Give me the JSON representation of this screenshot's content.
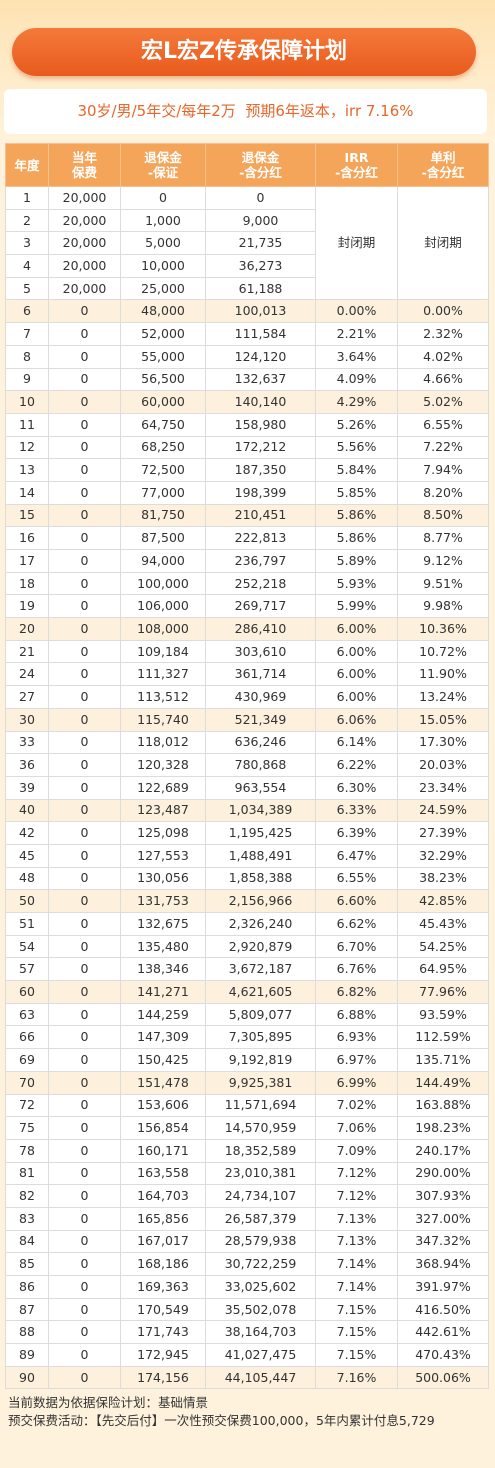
{
  "header": {
    "title": "宏L宏Z传承保障计划",
    "subtitle": "30岁/男/5年交/每年2万  预期6年返本，irr 7.16%"
  },
  "table": {
    "columns": [
      "年度",
      "当年\n保费",
      "退保金\n-保证",
      "退保金\n-含分红",
      "IRR\n-含分红",
      "单利\n-含分红"
    ],
    "closed_label": "封闭期",
    "rows": [
      {
        "cells": [
          "1",
          "20,000",
          "0",
          "0"
        ]
      },
      {
        "cells": [
          "2",
          "20,000",
          "1,000",
          "9,000"
        ]
      },
      {
        "cells": [
          "3",
          "20,000",
          "5,000",
          "21,735"
        ]
      },
      {
        "cells": [
          "4",
          "20,000",
          "10,000",
          "36,273"
        ]
      },
      {
        "cells": [
          "5",
          "20,000",
          "25,000",
          "61,188"
        ]
      },
      {
        "cells": [
          "6",
          "0",
          "48,000",
          "100,013",
          "0.00%",
          "0.00%"
        ],
        "highlight": true
      },
      {
        "cells": [
          "7",
          "0",
          "52,000",
          "111,584",
          "2.21%",
          "2.32%"
        ]
      },
      {
        "cells": [
          "8",
          "0",
          "55,000",
          "124,120",
          "3.64%",
          "4.02%"
        ]
      },
      {
        "cells": [
          "9",
          "0",
          "56,500",
          "132,637",
          "4.09%",
          "4.66%"
        ]
      },
      {
        "cells": [
          "10",
          "0",
          "60,000",
          "140,140",
          "4.29%",
          "5.02%"
        ],
        "highlight": true
      },
      {
        "cells": [
          "11",
          "0",
          "64,750",
          "158,980",
          "5.26%",
          "6.55%"
        ]
      },
      {
        "cells": [
          "12",
          "0",
          "68,250",
          "172,212",
          "5.56%",
          "7.22%"
        ]
      },
      {
        "cells": [
          "13",
          "0",
          "72,500",
          "187,350",
          "5.84%",
          "7.94%"
        ]
      },
      {
        "cells": [
          "14",
          "0",
          "77,000",
          "198,399",
          "5.85%",
          "8.20%"
        ]
      },
      {
        "cells": [
          "15",
          "0",
          "81,750",
          "210,451",
          "5.86%",
          "8.50%"
        ],
        "highlight": true
      },
      {
        "cells": [
          "16",
          "0",
          "87,500",
          "222,813",
          "5.86%",
          "8.77%"
        ]
      },
      {
        "cells": [
          "17",
          "0",
          "94,000",
          "236,797",
          "5.89%",
          "9.12%"
        ]
      },
      {
        "cells": [
          "18",
          "0",
          "100,000",
          "252,218",
          "5.93%",
          "9.51%"
        ]
      },
      {
        "cells": [
          "19",
          "0",
          "106,000",
          "269,717",
          "5.99%",
          "9.98%"
        ]
      },
      {
        "cells": [
          "20",
          "0",
          "108,000",
          "286,410",
          "6.00%",
          "10.36%"
        ],
        "highlight": true
      },
      {
        "cells": [
          "21",
          "0",
          "109,184",
          "303,610",
          "6.00%",
          "10.72%"
        ]
      },
      {
        "cells": [
          "24",
          "0",
          "111,327",
          "361,714",
          "6.00%",
          "11.90%"
        ]
      },
      {
        "cells": [
          "27",
          "0",
          "113,512",
          "430,969",
          "6.00%",
          "13.24%"
        ]
      },
      {
        "cells": [
          "30",
          "0",
          "115,740",
          "521,349",
          "6.06%",
          "15.05%"
        ],
        "highlight": true
      },
      {
        "cells": [
          "33",
          "0",
          "118,012",
          "636,246",
          "6.14%",
          "17.30%"
        ]
      },
      {
        "cells": [
          "36",
          "0",
          "120,328",
          "780,868",
          "6.22%",
          "20.03%"
        ]
      },
      {
        "cells": [
          "39",
          "0",
          "122,689",
          "963,554",
          "6.30%",
          "23.34%"
        ]
      },
      {
        "cells": [
          "40",
          "0",
          "123,487",
          "1,034,389",
          "6.33%",
          "24.59%"
        ],
        "highlight": true
      },
      {
        "cells": [
          "42",
          "0",
          "125,098",
          "1,195,425",
          "6.39%",
          "27.39%"
        ]
      },
      {
        "cells": [
          "45",
          "0",
          "127,553",
          "1,488,491",
          "6.47%",
          "32.29%"
        ]
      },
      {
        "cells": [
          "48",
          "0",
          "130,056",
          "1,858,388",
          "6.55%",
          "38.23%"
        ]
      },
      {
        "cells": [
          "50",
          "0",
          "131,753",
          "2,156,966",
          "6.60%",
          "42.85%"
        ],
        "highlight": true
      },
      {
        "cells": [
          "51",
          "0",
          "132,675",
          "2,326,240",
          "6.62%",
          "45.43%"
        ]
      },
      {
        "cells": [
          "54",
          "0",
          "135,480",
          "2,920,879",
          "6.70%",
          "54.25%"
        ]
      },
      {
        "cells": [
          "57",
          "0",
          "138,346",
          "3,672,187",
          "6.76%",
          "64.95%"
        ]
      },
      {
        "cells": [
          "60",
          "0",
          "141,271",
          "4,621,605",
          "6.82%",
          "77.96%"
        ],
        "highlight": true
      },
      {
        "cells": [
          "63",
          "0",
          "144,259",
          "5,809,077",
          "6.88%",
          "93.59%"
        ]
      },
      {
        "cells": [
          "66",
          "0",
          "147,309",
          "7,305,895",
          "6.93%",
          "112.59%"
        ]
      },
      {
        "cells": [
          "69",
          "0",
          "150,425",
          "9,192,819",
          "6.97%",
          "135.71%"
        ]
      },
      {
        "cells": [
          "70",
          "0",
          "151,478",
          "9,925,381",
          "6.99%",
          "144.49%"
        ],
        "highlight": true
      },
      {
        "cells": [
          "72",
          "0",
          "153,606",
          "11,571,694",
          "7.02%",
          "163.88%"
        ]
      },
      {
        "cells": [
          "75",
          "0",
          "156,854",
          "14,570,959",
          "7.06%",
          "198.23%"
        ]
      },
      {
        "cells": [
          "78",
          "0",
          "160,171",
          "18,352,589",
          "7.09%",
          "240.17%"
        ]
      },
      {
        "cells": [
          "81",
          "0",
          "163,558",
          "23,010,381",
          "7.12%",
          "290.00%"
        ]
      },
      {
        "cells": [
          "82",
          "0",
          "164,703",
          "24,734,107",
          "7.12%",
          "307.93%"
        ]
      },
      {
        "cells": [
          "83",
          "0",
          "165,856",
          "26,587,379",
          "7.13%",
          "327.00%"
        ]
      },
      {
        "cells": [
          "84",
          "0",
          "167,017",
          "28,579,938",
          "7.13%",
          "347.32%"
        ]
      },
      {
        "cells": [
          "85",
          "0",
          "168,186",
          "30,722,259",
          "7.14%",
          "368.94%"
        ]
      },
      {
        "cells": [
          "86",
          "0",
          "169,363",
          "33,025,602",
          "7.14%",
          "391.97%"
        ]
      },
      {
        "cells": [
          "87",
          "0",
          "170,549",
          "35,502,078",
          "7.15%",
          "416.50%"
        ]
      },
      {
        "cells": [
          "88",
          "0",
          "171,743",
          "38,164,703",
          "7.15%",
          "442.61%"
        ]
      },
      {
        "cells": [
          "89",
          "0",
          "172,945",
          "41,027,475",
          "7.15%",
          "470.43%"
        ]
      },
      {
        "cells": [
          "90",
          "0",
          "174,156",
          "44,105,447",
          "7.16%",
          "500.06%"
        ],
        "highlight": true
      }
    ]
  },
  "footer": {
    "lines": [
      "当前数据为依据保险计划：基础情景",
      "预交保费活动：【先交后付】一次性预交保费100,000，5年内累计付息5,729"
    ]
  }
}
